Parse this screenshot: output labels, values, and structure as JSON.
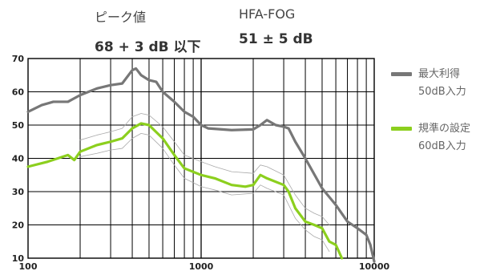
{
  "header": {
    "peak_label": "ピーク値",
    "peak_value": "68 + 3 dB 以下",
    "hfa_label": "HFA-FOG",
    "hfa_value": "51 ± 5 dB"
  },
  "legend": [
    {
      "line1": "最大利得",
      "line2": "50dB入力",
      "color": "#777777"
    },
    {
      "line1": "規準の設定",
      "line2": "60dB入力",
      "color": "#8ccf1e"
    }
  ],
  "chart_data": {
    "type": "line",
    "title": "",
    "xlabel": "",
    "ylabel": "",
    "x_scale": "log",
    "xlim": [
      100,
      10000
    ],
    "ylim": [
      10,
      70
    ],
    "x_ticks": [
      "100",
      "1000",
      "10000"
    ],
    "y_ticks": [
      "10",
      "20",
      "30",
      "40",
      "50",
      "60",
      "70"
    ],
    "grid": true,
    "legend_position": "right",
    "series": [
      {
        "name": "最大利得",
        "color": "#777777",
        "points": [
          [
            100,
            54
          ],
          [
            120,
            56
          ],
          [
            140,
            57
          ],
          [
            170,
            57
          ],
          [
            200,
            59
          ],
          [
            250,
            61
          ],
          [
            300,
            62
          ],
          [
            350,
            62.5
          ],
          [
            400,
            66.5
          ],
          [
            420,
            67
          ],
          [
            450,
            65
          ],
          [
            500,
            63.5
          ],
          [
            550,
            63
          ],
          [
            600,
            60
          ],
          [
            700,
            57
          ],
          [
            800,
            54
          ],
          [
            900,
            52.5
          ],
          [
            1000,
            50
          ],
          [
            1100,
            49
          ],
          [
            1500,
            48.5
          ],
          [
            2000,
            48.7
          ],
          [
            2200,
            50
          ],
          [
            2400,
            51.5
          ],
          [
            2700,
            50
          ],
          [
            3000,
            49.5
          ],
          [
            3200,
            49
          ],
          [
            3500,
            45
          ],
          [
            4000,
            40
          ],
          [
            5000,
            31
          ],
          [
            6000,
            26
          ],
          [
            7000,
            21
          ],
          [
            8000,
            19
          ],
          [
            9000,
            17
          ],
          [
            9500,
            14
          ],
          [
            10000,
            9
          ]
        ]
      },
      {
        "name": "規準の設定",
        "color": "#8ccf1e",
        "points": [
          [
            100,
            37.5
          ],
          [
            130,
            39
          ],
          [
            170,
            41
          ],
          [
            185,
            39.5
          ],
          [
            200,
            42
          ],
          [
            250,
            44
          ],
          [
            300,
            45
          ],
          [
            350,
            46
          ],
          [
            400,
            49
          ],
          [
            450,
            50.5
          ],
          [
            500,
            50
          ],
          [
            600,
            46
          ],
          [
            700,
            41
          ],
          [
            800,
            37
          ],
          [
            1000,
            35
          ],
          [
            1200,
            34
          ],
          [
            1500,
            32
          ],
          [
            1800,
            31.5
          ],
          [
            2000,
            32
          ],
          [
            2200,
            35
          ],
          [
            2400,
            34
          ],
          [
            3000,
            32
          ],
          [
            3200,
            30
          ],
          [
            3500,
            25
          ],
          [
            4000,
            21
          ],
          [
            4500,
            20
          ],
          [
            5000,
            19
          ],
          [
            5500,
            15
          ],
          [
            6000,
            14
          ],
          [
            6500,
            10
          ]
        ]
      },
      {
        "name": "",
        "color": "#aaaaaa",
        "points": [
          [
            200,
            45.5
          ],
          [
            250,
            47
          ],
          [
            300,
            48
          ],
          [
            350,
            49
          ],
          [
            400,
            52.5
          ],
          [
            450,
            53.5
          ],
          [
            500,
            53
          ],
          [
            600,
            49.5
          ],
          [
            700,
            45
          ],
          [
            800,
            41
          ],
          [
            1000,
            39
          ],
          [
            1200,
            37.5
          ],
          [
            1500,
            36
          ],
          [
            2000,
            35.5
          ],
          [
            2200,
            38
          ],
          [
            2400,
            37.5
          ],
          [
            3000,
            35
          ],
          [
            3500,
            29
          ],
          [
            4000,
            25
          ],
          [
            4500,
            23.5
          ],
          [
            5000,
            22.5
          ],
          [
            5500,
            20
          ]
        ]
      },
      {
        "name": "",
        "color": "#aaaaaa",
        "points": [
          [
            200,
            40.5
          ],
          [
            250,
            41.5
          ],
          [
            300,
            42.5
          ],
          [
            350,
            43
          ],
          [
            400,
            46
          ],
          [
            450,
            47.5
          ],
          [
            500,
            47
          ],
          [
            600,
            43
          ],
          [
            700,
            38
          ],
          [
            800,
            34
          ],
          [
            1000,
            31.5
          ],
          [
            1200,
            30.5
          ],
          [
            1500,
            29
          ],
          [
            2000,
            29.5
          ],
          [
            2200,
            32
          ],
          [
            2400,
            31
          ],
          [
            3000,
            29
          ],
          [
            3500,
            22
          ],
          [
            4000,
            18.5
          ],
          [
            4500,
            16.5
          ],
          [
            5000,
            15.5
          ],
          [
            5500,
            12
          ]
        ]
      }
    ]
  }
}
